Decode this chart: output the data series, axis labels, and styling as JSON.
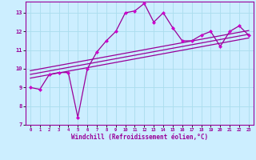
{
  "title": "",
  "xlabel": "Windchill (Refroidissement éolien,°C)",
  "ylabel": "",
  "bg_color": "#cceeff",
  "grid_color": "#aaddee",
  "line_color": "#990099",
  "marker_color": "#cc00cc",
  "xlim": [
    -0.5,
    23.5
  ],
  "ylim": [
    7,
    13.6
  ],
  "yticks": [
    7,
    8,
    9,
    10,
    11,
    12,
    13
  ],
  "xticks": [
    0,
    1,
    2,
    3,
    4,
    5,
    6,
    7,
    8,
    9,
    10,
    11,
    12,
    13,
    14,
    15,
    16,
    17,
    18,
    19,
    20,
    21,
    22,
    23
  ],
  "main_x": [
    0,
    1,
    2,
    3,
    4,
    5,
    6,
    7,
    8,
    9,
    10,
    11,
    12,
    13,
    14,
    15,
    16,
    17,
    18,
    19,
    20,
    21,
    22,
    23
  ],
  "main_y": [
    9.0,
    8.9,
    9.7,
    9.8,
    9.8,
    7.4,
    10.0,
    10.9,
    11.5,
    12.0,
    13.0,
    13.1,
    13.5,
    12.5,
    13.0,
    12.2,
    11.5,
    11.5,
    11.8,
    12.0,
    11.2,
    12.0,
    12.3,
    11.8
  ],
  "line1_x": [
    0,
    23
  ],
  "line1_y": [
    9.7,
    11.85
  ],
  "line2_x": [
    0,
    23
  ],
  "line2_y": [
    9.5,
    11.65
  ],
  "line3_x": [
    0,
    23
  ],
  "line3_y": [
    9.9,
    12.05
  ]
}
